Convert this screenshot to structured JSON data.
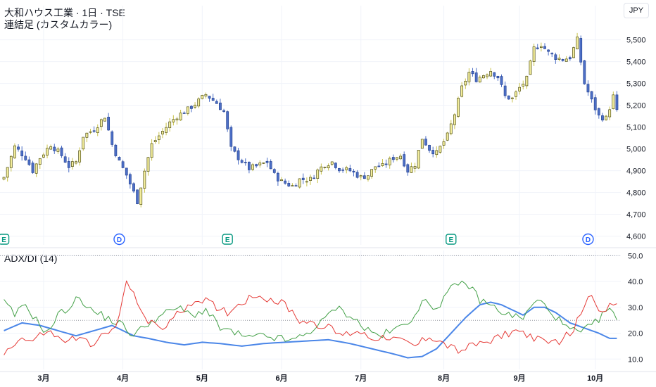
{
  "header": {
    "title": "大和ハウス工業 · 1日 · TSE",
    "subtitle": "連結足 (カスタムカラー)",
    "currency": "JPY"
  },
  "indicator": {
    "title": "ADX/DI (14)"
  },
  "colors": {
    "up_body": "#f2ec9b",
    "up_border": "#3a3a00",
    "down_body": "#4d6fc6",
    "down_border": "#1e3c8c",
    "adx": "#4a86e8",
    "plus_di": "#43a047",
    "minus_di": "#e53935",
    "earnings_badge": "#089981",
    "dividend_badge": "#2962ff"
  },
  "chart_data": [
    {
      "type": "candlestick",
      "title": "大和ハウス工業 · 1日 · TSE",
      "ylim": [
        4560,
        5560
      ],
      "y_ticks": [
        "5,500",
        "5,400",
        "5,300",
        "5,200",
        "5,100",
        "5,000",
        "4,900",
        "4,800",
        "4,700",
        "4,600"
      ],
      "y_tick_values": [
        5500,
        5400,
        5300,
        5200,
        5100,
        5000,
        4900,
        4800,
        4700,
        4600
      ],
      "x_ticks": [
        "3月",
        "4月",
        "5月",
        "6月",
        "7月",
        "8月",
        "9月",
        "10月"
      ],
      "x_tick_index": [
        11,
        33,
        55,
        77,
        99,
        122,
        143,
        164
      ],
      "n_bars": 171,
      "events": [
        {
          "label": "E",
          "index": 0
        },
        {
          "label": "D",
          "index": 32
        },
        {
          "label": "E",
          "index": 62
        },
        {
          "label": "E",
          "index": 124
        },
        {
          "label": "D",
          "index": 162
        }
      ],
      "anchors": [
        [
          0,
          4870
        ],
        [
          3,
          5010
        ],
        [
          6,
          4960
        ],
        [
          8,
          4900
        ],
        [
          10,
          4960
        ],
        [
          13,
          5020
        ],
        [
          16,
          4970
        ],
        [
          18,
          4920
        ],
        [
          20,
          4940
        ],
        [
          22,
          5060
        ],
        [
          25,
          5090
        ],
        [
          28,
          5150
        ],
        [
          30,
          5020
        ],
        [
          32,
          4940
        ],
        [
          34,
          4880
        ],
        [
          37,
          4760
        ],
        [
          39,
          4900
        ],
        [
          41,
          5020
        ],
        [
          43,
          5060
        ],
        [
          46,
          5120
        ],
        [
          48,
          5150
        ],
        [
          51,
          5180
        ],
        [
          54,
          5220
        ],
        [
          56,
          5250
        ],
        [
          59,
          5210
        ],
        [
          61,
          5170
        ],
        [
          63,
          5000
        ],
        [
          65,
          4960
        ],
        [
          68,
          4910
        ],
        [
          70,
          4920
        ],
        [
          73,
          4940
        ],
        [
          75,
          4880
        ],
        [
          77,
          4850
        ],
        [
          80,
          4830
        ],
        [
          82,
          4860
        ],
        [
          85,
          4860
        ],
        [
          87,
          4900
        ],
        [
          89,
          4930
        ],
        [
          91,
          4940
        ],
        [
          93,
          4910
        ],
        [
          96,
          4900
        ],
        [
          99,
          4870
        ],
        [
          101,
          4880
        ],
        [
          103,
          4920
        ],
        [
          105,
          4920
        ],
        [
          108,
          4960
        ],
        [
          110,
          4970
        ],
        [
          112,
          4900
        ],
        [
          114,
          4930
        ],
        [
          116,
          5050
        ],
        [
          118,
          5000
        ],
        [
          120,
          4980
        ],
        [
          123,
          5060
        ],
        [
          125,
          5160
        ],
        [
          127,
          5280
        ],
        [
          129,
          5350
        ],
        [
          131,
          5320
        ],
        [
          133,
          5340
        ],
        [
          135,
          5360
        ],
        [
          137,
          5330
        ],
        [
          139,
          5240
        ],
        [
          141,
          5230
        ],
        [
          143,
          5280
        ],
        [
          145,
          5320
        ],
        [
          147,
          5460
        ],
        [
          149,
          5480
        ],
        [
          151,
          5440
        ],
        [
          153,
          5420
        ],
        [
          155,
          5410
        ],
        [
          157,
          5420
        ],
        [
          159,
          5500
        ],
        [
          161,
          5300
        ],
        [
          163,
          5220
        ],
        [
          165,
          5150
        ],
        [
          167,
          5140
        ],
        [
          169,
          5240
        ],
        [
          170,
          5170
        ]
      ]
    },
    {
      "type": "line",
      "title": "ADX/DI (14)",
      "ylim": [
        6,
        52
      ],
      "y_ticks": [
        "50.0",
        "40.0",
        "30.0",
        "20.0",
        "10.0"
      ],
      "y_tick_values": [
        50,
        40,
        30,
        20,
        10
      ],
      "reference_line": 25,
      "series": [
        {
          "key": "adx",
          "anchors": [
            [
              0,
              21
            ],
            [
              5,
              24
            ],
            [
              10,
              23
            ],
            [
              15,
              21
            ],
            [
              20,
              19
            ],
            [
              25,
              21
            ],
            [
              30,
              23
            ],
            [
              33,
              21
            ],
            [
              36,
              19
            ],
            [
              40,
              18
            ],
            [
              45,
              16.5
            ],
            [
              50,
              15.5
            ],
            [
              55,
              16.5
            ],
            [
              60,
              16
            ],
            [
              66,
              15
            ],
            [
              72,
              16
            ],
            [
              78,
              16.5
            ],
            [
              84,
              17
            ],
            [
              90,
              17.5
            ],
            [
              96,
              16
            ],
            [
              102,
              14
            ],
            [
              108,
              12
            ],
            [
              112,
              10.5
            ],
            [
              116,
              11
            ],
            [
              120,
              14
            ],
            [
              124,
              20
            ],
            [
              128,
              26
            ],
            [
              132,
              31
            ],
            [
              135,
              32
            ],
            [
              138,
              31
            ],
            [
              141,
              29
            ],
            [
              144,
              27
            ],
            [
              147,
              30
            ],
            [
              150,
              30
            ],
            [
              153,
              28
            ],
            [
              157,
              24
            ],
            [
              161,
              22
            ],
            [
              165,
              20
            ],
            [
              168,
              18
            ],
            [
              170,
              18
            ]
          ]
        },
        {
          "key": "plus_di",
          "anchors": [
            [
              0,
              32
            ],
            [
              3,
              27
            ],
            [
              6,
              31
            ],
            [
              9,
              25
            ],
            [
              12,
              20
            ],
            [
              15,
              27
            ],
            [
              18,
              30
            ],
            [
              21,
              34
            ],
            [
              24,
              29
            ],
            [
              27,
              27
            ],
            [
              30,
              25
            ],
            [
              33,
              23
            ],
            [
              36,
              19
            ],
            [
              40,
              24
            ],
            [
              44,
              27
            ],
            [
              48,
              30
            ],
            [
              52,
              27
            ],
            [
              56,
              29
            ],
            [
              60,
              22
            ],
            [
              64,
              20
            ],
            [
              68,
              18
            ],
            [
              72,
              19
            ],
            [
              76,
              18
            ],
            [
              80,
              17
            ],
            [
              84,
              20
            ],
            [
              88,
              24
            ],
            [
              92,
              30
            ],
            [
              96,
              27
            ],
            [
              100,
              22
            ],
            [
              104,
              19
            ],
            [
              108,
              21
            ],
            [
              112,
              24
            ],
            [
              116,
              32
            ],
            [
              120,
              30
            ],
            [
              124,
              37
            ],
            [
              128,
              40
            ],
            [
              132,
              33
            ],
            [
              136,
              30
            ],
            [
              140,
              27
            ],
            [
              144,
              26
            ],
            [
              148,
              33
            ],
            [
              152,
              28
            ],
            [
              156,
              22
            ],
            [
              160,
              20
            ],
            [
              164,
              24
            ],
            [
              168,
              30
            ],
            [
              170,
              24
            ]
          ]
        },
        {
          "key": "minus_di",
          "anchors": [
            [
              0,
              12
            ],
            [
              4,
              18
            ],
            [
              8,
              17
            ],
            [
              12,
              21
            ],
            [
              16,
              17
            ],
            [
              20,
              18
            ],
            [
              24,
              16
            ],
            [
              28,
              19
            ],
            [
              31,
              22
            ],
            [
              34,
              39
            ],
            [
              36,
              36
            ],
            [
              38,
              30
            ],
            [
              40,
              24
            ],
            [
              44,
              22
            ],
            [
              48,
              27
            ],
            [
              52,
              32
            ],
            [
              55,
              33
            ],
            [
              58,
              31
            ],
            [
              62,
              28
            ],
            [
              66,
              32
            ],
            [
              70,
              35
            ],
            [
              74,
              33
            ],
            [
              78,
              31
            ],
            [
              82,
              25
            ],
            [
              86,
              24
            ],
            [
              90,
              22
            ],
            [
              94,
              19
            ],
            [
              98,
              21
            ],
            [
              102,
              18
            ],
            [
              106,
              19
            ],
            [
              110,
              17
            ],
            [
              114,
              15
            ],
            [
              118,
              19
            ],
            [
              122,
              16
            ],
            [
              126,
              13
            ],
            [
              130,
              15
            ],
            [
              134,
              17
            ],
            [
              138,
              19
            ],
            [
              142,
              21
            ],
            [
              146,
              19
            ],
            [
              150,
              16
            ],
            [
              154,
              17
            ],
            [
              158,
              21
            ],
            [
              162,
              35
            ],
            [
              164,
              33
            ],
            [
              166,
              27
            ],
            [
              170,
              33
            ]
          ]
        }
      ]
    }
  ]
}
